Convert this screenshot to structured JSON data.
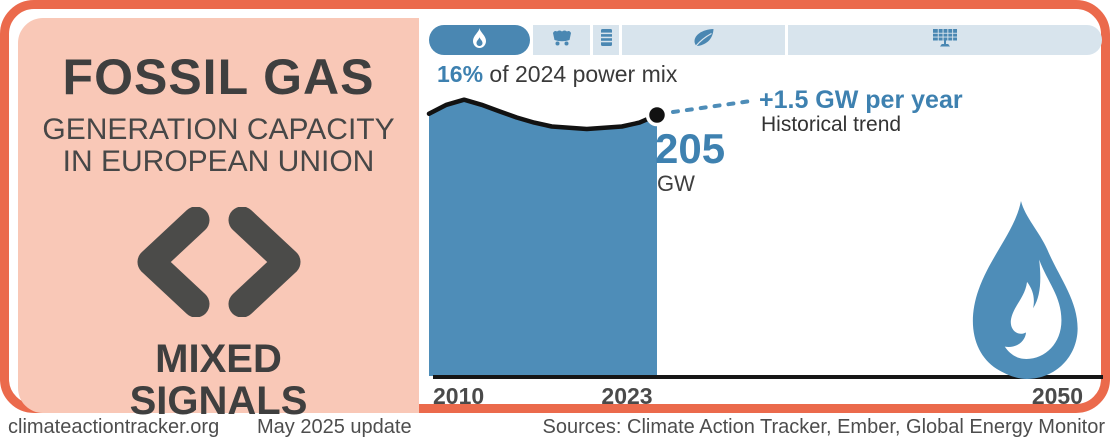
{
  "colors": {
    "frame_orange": "#EB6A4C",
    "panel_salmon": "#F9C8B7",
    "accent_blue": "#4A87B2",
    "accent_blue_text": "#3E81B0",
    "bar_light_blue": "#D8E4ED",
    "dark_text": "#3F3F3F",
    "line_black": "#121212"
  },
  "left_panel": {
    "title": "FOSSIL GAS",
    "subtitle_line1": "GENERATION CAPACITY",
    "subtitle_line2": "IN EUROPEAN UNION",
    "verdict_line1": "MIXED",
    "verdict_line2": "SIGNALS"
  },
  "power_mix_bar": {
    "segments": [
      {
        "icon": "gas-flame-icon",
        "active": true
      },
      {
        "icon": "coal-cart-icon",
        "active": false
      },
      {
        "icon": "oil-barrel-icon",
        "active": false
      },
      {
        "icon": "leaf-icon",
        "active": false
      },
      {
        "icon": "solar-panel-icon",
        "active": false
      }
    ]
  },
  "mix_caption": {
    "highlight": "16%",
    "rest": " of 2024 power mix"
  },
  "chart": {
    "value": "205",
    "unit": "GW",
    "trend": "+1.5 GW per year",
    "trend_sub": "Historical trend",
    "x_labels": [
      "2010",
      "2023",
      "2050"
    ]
  },
  "chart_data": {
    "type": "area",
    "title": "Fossil gas generation capacity in European Union",
    "x": [
      2010,
      2011,
      2012,
      2013,
      2014,
      2015,
      2016,
      2017,
      2018,
      2019,
      2020,
      2021,
      2022,
      2023
    ],
    "values": [
      206,
      213,
      217,
      213,
      208,
      203,
      199,
      196,
      195,
      194,
      195,
      196,
      199,
      205
    ],
    "ylabel": "GW",
    "end_point": {
      "year": 2023,
      "value": 205,
      "unit": "GW"
    },
    "annotation": "+1.5 GW per year (Historical trend)",
    "share_of_power_mix_2024": "16%",
    "x_axis": {
      "ticks": [
        2010,
        2023,
        2050
      ],
      "range": [
        2010,
        2050
      ]
    },
    "y_axis": {
      "range_min": 0,
      "visible": false
    },
    "grid": false,
    "legend": "none",
    "series_color": "#4E8DB8",
    "line_color": "#121212"
  },
  "footer": {
    "site": "climateactiontracker.org",
    "update": "May 2025 update",
    "sources": "Sources: Climate Action Tracker, Ember, Global Energy Monitor"
  }
}
